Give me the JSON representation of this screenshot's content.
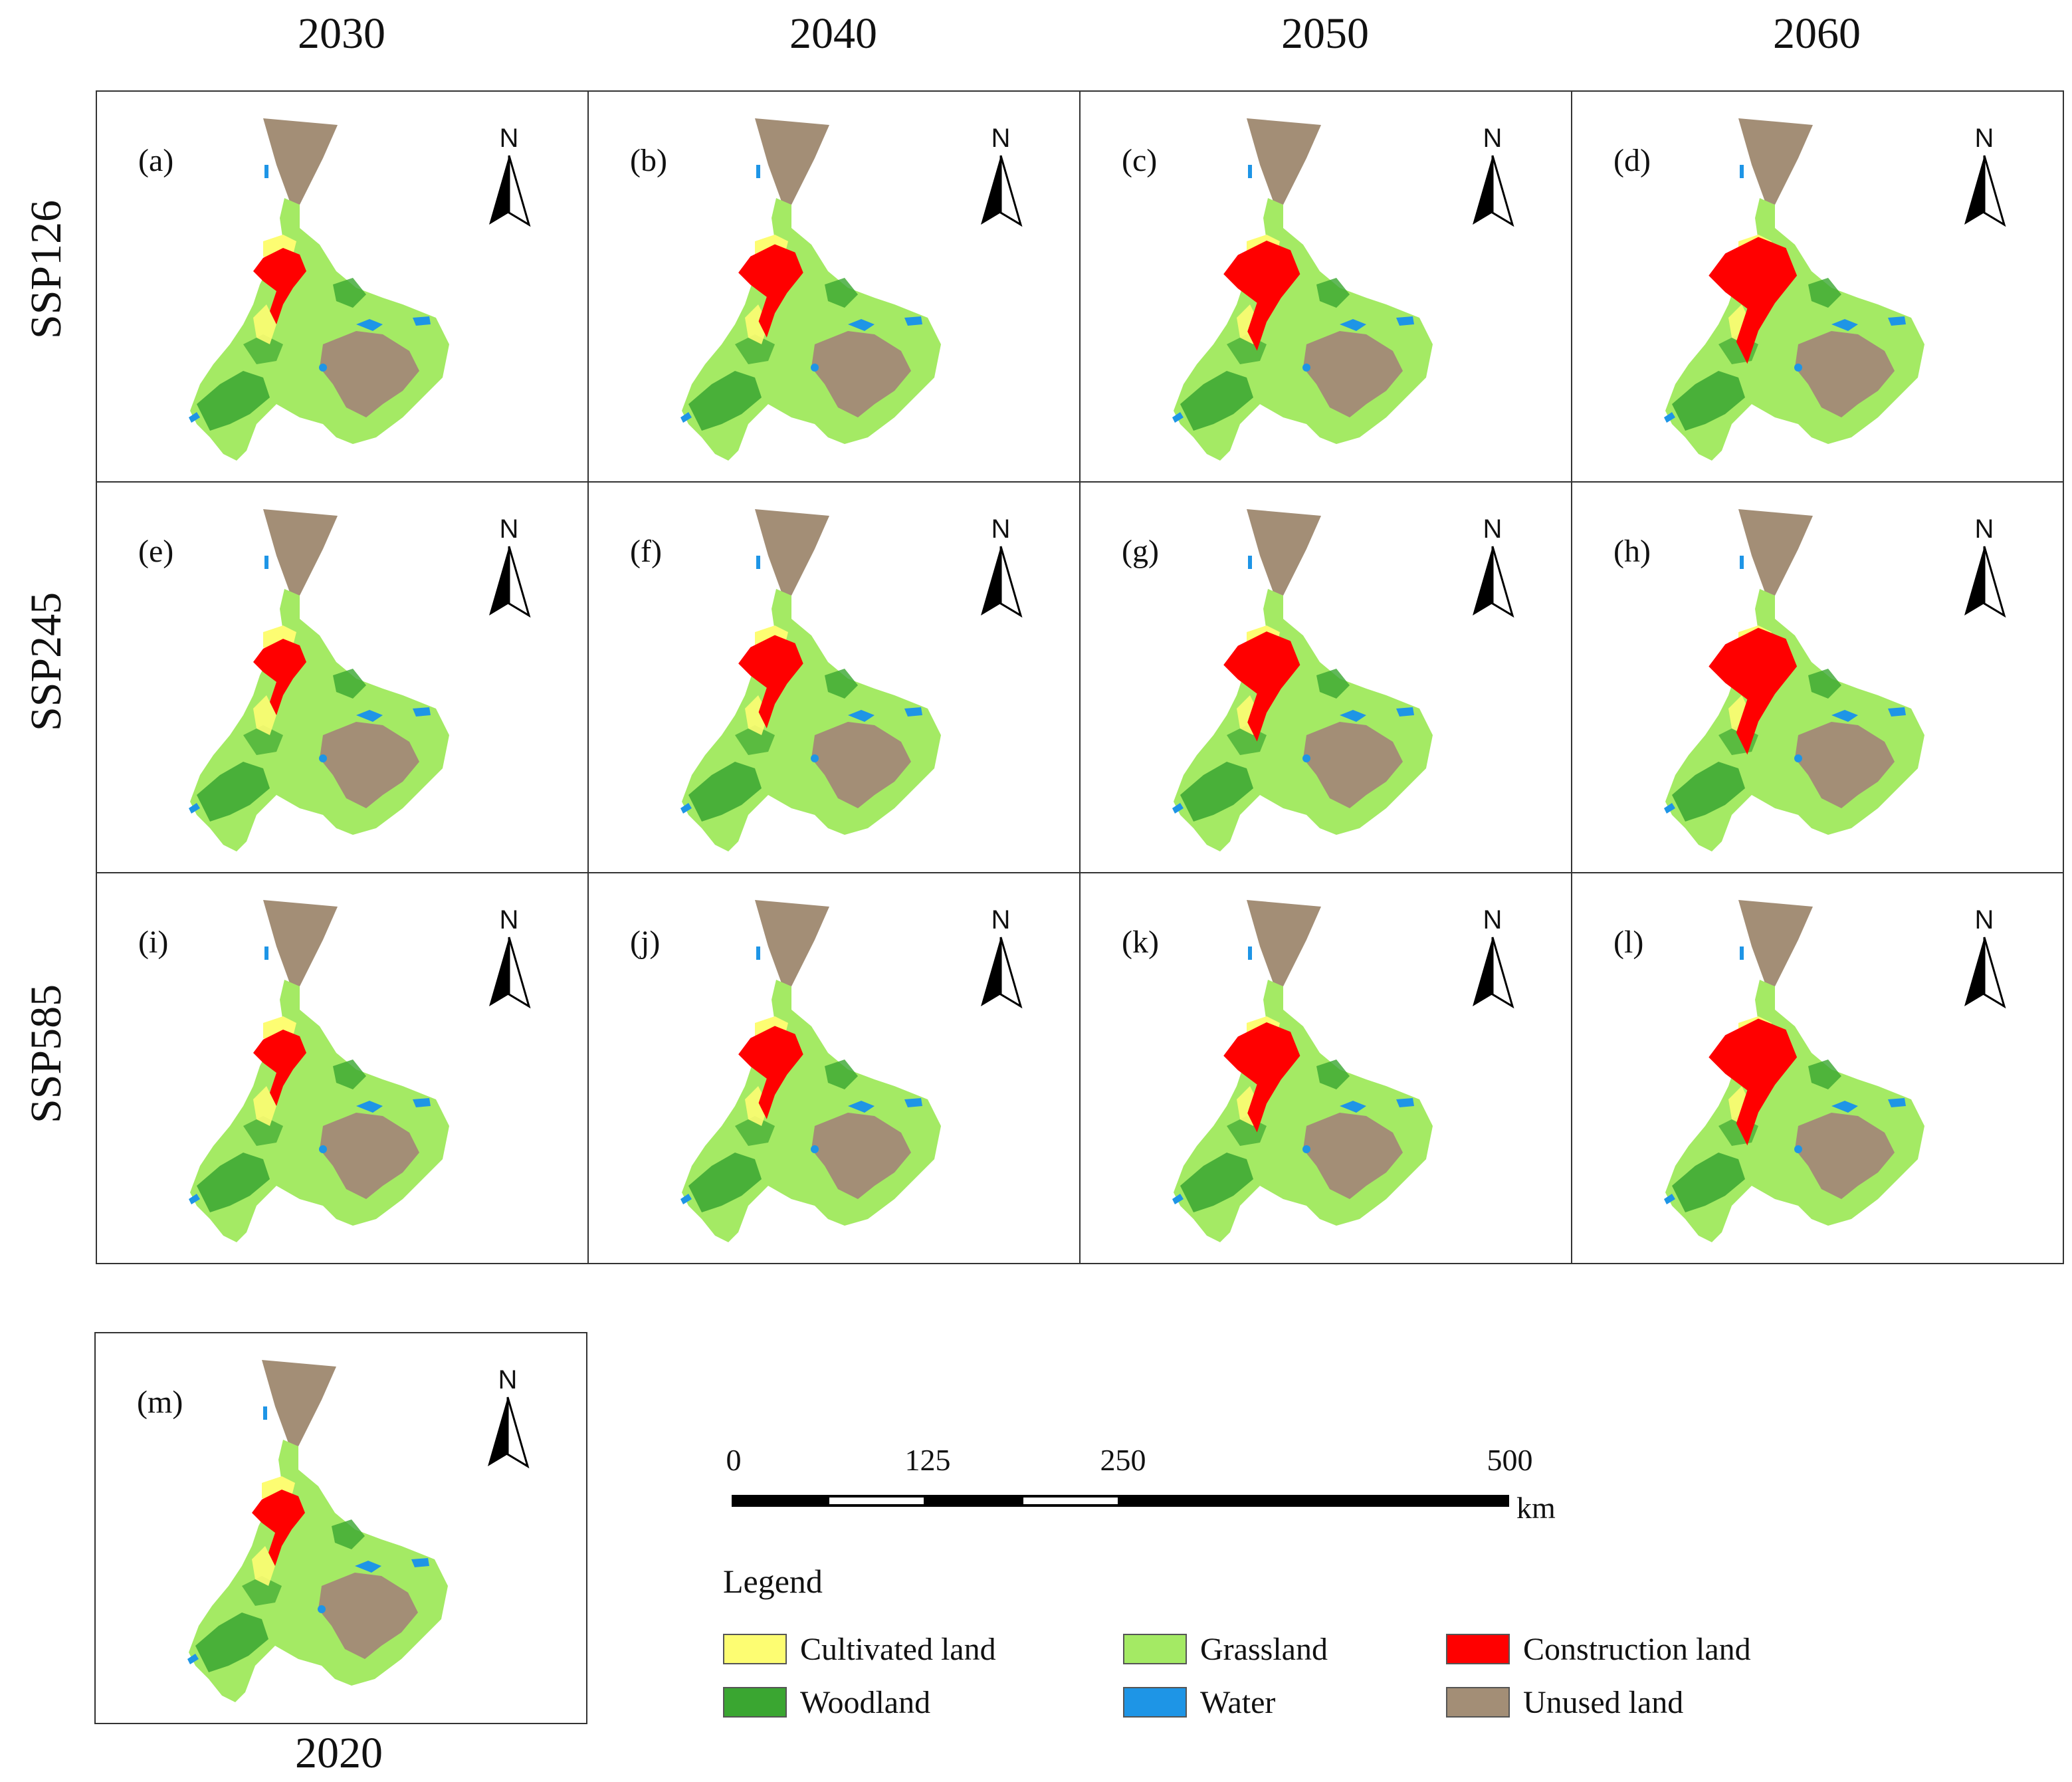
{
  "years": [
    "2030",
    "2040",
    "2050",
    "2060"
  ],
  "scenarios": [
    "SSP126",
    "SSP245",
    "SSP585"
  ],
  "panels": [
    {
      "label": "(a)",
      "scenario": "SSP126",
      "year": "2030"
    },
    {
      "label": "(b)",
      "scenario": "SSP126",
      "year": "2040"
    },
    {
      "label": "(c)",
      "scenario": "SSP126",
      "year": "2050"
    },
    {
      "label": "(d)",
      "scenario": "SSP126",
      "year": "2060"
    },
    {
      "label": "(e)",
      "scenario": "SSP245",
      "year": "2030"
    },
    {
      "label": "(f)",
      "scenario": "SSP245",
      "year": "2040"
    },
    {
      "label": "(g)",
      "scenario": "SSP245",
      "year": "2050"
    },
    {
      "label": "(h)",
      "scenario": "SSP245",
      "year": "2060"
    },
    {
      "label": "(i)",
      "scenario": "SSP585",
      "year": "2030"
    },
    {
      "label": "(j)",
      "scenario": "SSP585",
      "year": "2040"
    },
    {
      "label": "(k)",
      "scenario": "SSP585",
      "year": "2050"
    },
    {
      "label": "(l)",
      "scenario": "SSP585",
      "year": "2060"
    },
    {
      "label": "(m)",
      "scenario": "",
      "year": "2020"
    }
  ],
  "baseline_year": "2020",
  "north_label": "N",
  "scale_bar": {
    "ticks": [
      "0",
      "125",
      "250",
      "500"
    ],
    "unit": "km"
  },
  "legend": {
    "title": "Legend",
    "items": [
      {
        "name": "Cultivated land",
        "color": "#fdfd72"
      },
      {
        "name": "Grassland",
        "color": "#a4ea64"
      },
      {
        "name": "Construction land",
        "color": "#ff0000"
      },
      {
        "name": "Woodland",
        "color": "#3aa631"
      },
      {
        "name": "Water",
        "color": "#1e95e6"
      },
      {
        "name": "Unused land",
        "color": "#a38e76"
      }
    ]
  }
}
